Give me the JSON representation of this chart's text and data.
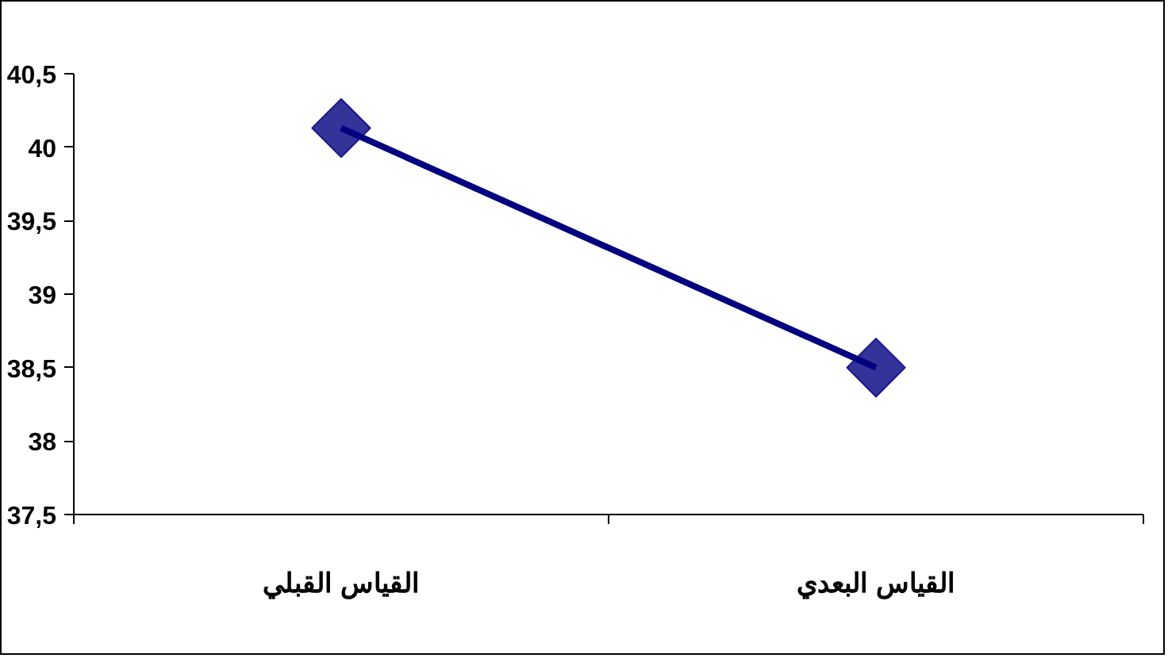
{
  "chart_data": {
    "type": "line",
    "categories": [
      "القياس القبلي",
      "القياس البعدي"
    ],
    "series": [
      {
        "color": "#000080",
        "values": [
          40.13,
          38.5
        ]
      }
    ],
    "ylim": [
      37.5,
      40.5
    ],
    "yticks": [
      {
        "value": 37.5,
        "label": "37,5"
      },
      38,
      {
        "value": 38.5,
        "label": "38,5"
      },
      39,
      {
        "value": 39.5,
        "label": "39,5"
      },
      40,
      {
        "value": 40.5,
        "label": "40,5"
      }
    ],
    "marker": "diamond",
    "line_style": "solid",
    "grid": false
  }
}
